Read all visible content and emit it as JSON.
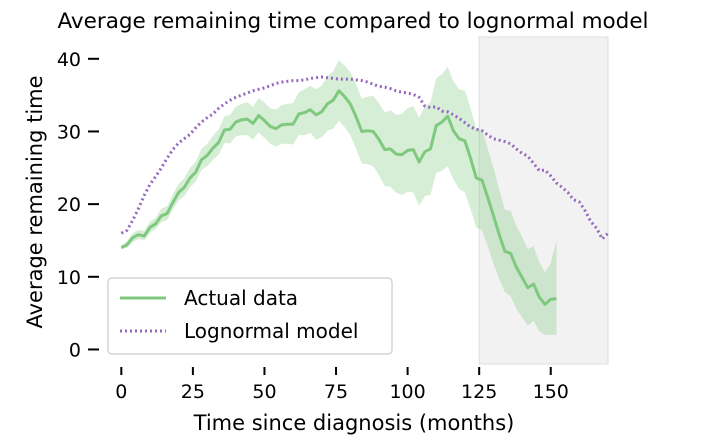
{
  "chart_data": {
    "type": "line",
    "title": "Average remaining time compared to lognormal model",
    "xlabel": "Time since diagnosis (months)",
    "ylabel": "Average remaining time",
    "xlim": [
      -5,
      170
    ],
    "ylim": [
      -2,
      43
    ],
    "x_ticks": [
      0,
      25,
      50,
      75,
      100,
      125,
      150
    ],
    "y_ticks": [
      0,
      10,
      20,
      30,
      40
    ],
    "grid": false,
    "legend_position": "lower-left",
    "shaded_region": {
      "x_start": 125,
      "x_end": 170,
      "color": "#f2f2f2"
    },
    "series": [
      {
        "name": "Actual data",
        "style": "solid",
        "color": "#7fc97f",
        "x": [
          0,
          2,
          4,
          6,
          8,
          10,
          12,
          14,
          16,
          18,
          20,
          22,
          24,
          26,
          28,
          30,
          32,
          34,
          36,
          38,
          40,
          42,
          44,
          46,
          48,
          50,
          52,
          54,
          56,
          58,
          60,
          62,
          64,
          66,
          68,
          70,
          72,
          74,
          76,
          78,
          80,
          82,
          84,
          86,
          88,
          90,
          92,
          94,
          96,
          98,
          100,
          102,
          104,
          106,
          108,
          110,
          112,
          114,
          116,
          118,
          120,
          122,
          124,
          126,
          128,
          130,
          132,
          134,
          136,
          138,
          140,
          142,
          144,
          146,
          148,
          150,
          152
        ],
        "y": [
          14,
          14.4,
          15.4,
          15.8,
          15.6,
          16.8,
          17.3,
          18.4,
          18.7,
          20.2,
          21.6,
          22.3,
          23.6,
          24.4,
          26.1,
          26.7,
          27.7,
          28.5,
          30.2,
          30.3,
          31.3,
          31.6,
          31.7,
          31.1,
          32.2,
          31.5,
          30.7,
          30.4,
          30.9,
          31.0,
          31.0,
          32.4,
          32.6,
          33.0,
          32.3,
          32.7,
          33.8,
          34.3,
          35.6,
          34.8,
          33.8,
          32.0,
          30.0,
          30.1,
          30.0,
          28.9,
          27.5,
          27.6,
          26.9,
          26.8,
          27.4,
          27.5,
          25.8,
          27.2,
          27.6,
          30.8,
          31.3,
          32.1,
          30.1,
          29.0,
          28.7,
          26.3,
          23.6,
          23.3,
          20.9,
          18.4,
          15.8,
          13.5,
          13.2,
          11.3,
          9.9,
          8.5,
          9.0,
          7.2,
          6.2,
          6.9,
          7.0
        ],
        "ci_lower": [
          13.8,
          14.0,
          14.8,
          15.2,
          15.0,
          16.0,
          16.6,
          17.5,
          17.8,
          19.2,
          20.5,
          21.1,
          22.3,
          23.1,
          24.7,
          25.2,
          26.1,
          26.8,
          28.4,
          28.4,
          29.3,
          29.5,
          29.5,
          28.9,
          29.9,
          29.1,
          28.3,
          27.9,
          28.3,
          28.3,
          28.2,
          29.5,
          29.5,
          29.8,
          28.9,
          29.2,
          30.1,
          30.4,
          31.5,
          30.6,
          29.5,
          27.6,
          25.6,
          25.5,
          25.2,
          24.0,
          22.5,
          22.4,
          21.6,
          21.3,
          21.7,
          21.6,
          19.8,
          21.1,
          21.3,
          24.3,
          24.6,
          25.2,
          23.4,
          22.1,
          21.6,
          19.3,
          16.8,
          16.4,
          14.2,
          11.8,
          9.7,
          7.9,
          7.3,
          5.6,
          4.4,
          3.3,
          3.9,
          2.5,
          2.0,
          2.0,
          2.0
        ],
        "ci_upper": [
          14.3,
          14.9,
          16.0,
          16.5,
          16.3,
          17.6,
          18.1,
          19.4,
          19.7,
          21.3,
          22.8,
          23.6,
          25.0,
          25.8,
          27.6,
          28.3,
          29.4,
          30.3,
          32.1,
          32.3,
          33.4,
          33.8,
          34.0,
          33.4,
          34.6,
          34.0,
          33.2,
          33.0,
          33.6,
          33.8,
          33.9,
          35.4,
          35.8,
          36.3,
          35.8,
          36.3,
          37.6,
          38.3,
          39.8,
          39.1,
          38.2,
          36.5,
          34.5,
          34.8,
          34.9,
          33.9,
          32.6,
          32.9,
          32.3,
          32.4,
          33.2,
          33.5,
          31.9,
          33.4,
          34.0,
          37.3,
          37.9,
          38.9,
          36.9,
          35.8,
          35.6,
          33.2,
          30.4,
          30.2,
          27.6,
          25.0,
          22.0,
          19.2,
          19.1,
          17.0,
          15.5,
          13.8,
          14.2,
          12.0,
          10.6,
          11.9,
          15.0
        ]
      },
      {
        "name": "Lognormal model",
        "style": "dotted",
        "color": "#9467bd",
        "x": [
          0,
          2,
          4,
          6,
          8,
          10,
          12,
          14,
          16,
          18,
          20,
          22,
          24,
          26,
          28,
          30,
          32,
          34,
          36,
          38,
          40,
          42,
          44,
          46,
          48,
          50,
          52,
          54,
          56,
          58,
          60,
          62,
          64,
          66,
          68,
          70,
          72,
          74,
          76,
          78,
          80,
          82,
          84,
          86,
          88,
          90,
          92,
          94,
          96,
          98,
          100,
          102,
          104,
          106,
          108,
          110,
          112,
          114,
          116,
          118,
          120,
          122,
          124,
          126,
          128,
          130,
          132,
          134,
          136,
          138,
          140,
          142,
          144,
          146,
          148,
          150,
          152,
          154,
          156,
          158,
          160,
          162,
          164,
          166,
          168,
          170
        ],
        "y": [
          16.0,
          16.4,
          17.8,
          19.4,
          21.2,
          22.7,
          23.8,
          25.0,
          26.3,
          27.5,
          28.4,
          29.0,
          29.6,
          30.5,
          31.3,
          31.9,
          32.4,
          33.2,
          33.8,
          34.3,
          34.7,
          35.0,
          35.3,
          35.6,
          35.8,
          36.0,
          36.3,
          36.6,
          36.8,
          36.9,
          37.0,
          37.0,
          37.1,
          37.3,
          37.4,
          37.5,
          37.4,
          37.3,
          37.2,
          37.2,
          37.2,
          37.1,
          37.0,
          36.8,
          36.5,
          36.2,
          36.1,
          35.9,
          35.6,
          35.4,
          35.3,
          35.1,
          34.7,
          33.5,
          33.3,
          33.4,
          32.8,
          32.7,
          32.3,
          31.8,
          31.2,
          30.6,
          30.3,
          30.1,
          29.5,
          29.0,
          28.8,
          28.6,
          28.3,
          27.6,
          27.0,
          26.6,
          25.6,
          24.6,
          24.7,
          23.9,
          22.9,
          22.3,
          21.6,
          20.6,
          20.3,
          19.1,
          17.6,
          16.7,
          15.2,
          16.0
        ]
      }
    ]
  }
}
